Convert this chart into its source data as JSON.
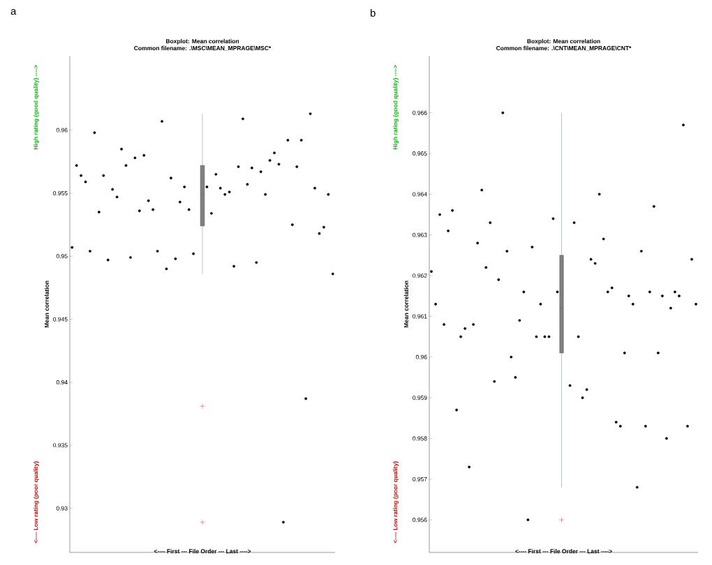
{
  "chart_data": [
    {
      "type": "scatter",
      "title": "Boxplot: Mean correlation",
      "subtitle": "Common filename: .\\MSC\\MEAN_MPRAGE\\MSC*",
      "xlabel": "<---- First --- File Order --- Last ---->",
      "ylabel": "Mean correlation",
      "annotations": [
        "a",
        "High rating (good quality) ---->",
        "<---- Low rating (poor quality)"
      ],
      "categories": [
        null,
        null,
        null,
        null,
        null,
        null,
        null,
        null,
        null,
        null,
        null,
        null,
        null,
        null,
        null,
        null,
        null,
        null,
        null,
        null,
        null,
        null,
        null,
        null,
        null,
        null,
        null,
        null,
        null,
        null,
        null,
        null,
        null,
        null,
        null,
        null,
        null,
        null,
        null,
        null,
        null,
        null,
        null,
        null,
        null,
        null,
        null,
        null,
        null,
        null,
        null,
        null,
        null,
        null,
        null,
        null,
        null,
        null,
        null
      ],
      "ylim": [
        0.9265,
        0.9659
      ],
      "yticks": [
        0.93,
        0.935,
        0.94,
        0.945,
        0.95,
        0.955,
        0.96
      ],
      "tick_labels": "y",
      "grid": false,
      "series": [
        {
          "color": "#000000",
          "values": [
            0.9507,
            0.9572,
            0.9564,
            0.9559,
            0.9504,
            0.9598,
            0.9535,
            0.9564,
            0.9497,
            0.9553,
            0.9547,
            0.9585,
            0.9572,
            0.9499,
            0.9578,
            0.9536,
            0.958,
            0.9544,
            0.9537,
            0.9504,
            0.9607,
            0.949,
            0.9562,
            0.9498,
            0.9543,
            0.9555,
            0.9537,
            0.9502,
            null,
            null,
            0.9555,
            0.9534,
            0.9565,
            0.9554,
            0.9549,
            0.9551,
            0.9492,
            0.9571,
            0.9609,
            0.9557,
            0.957,
            0.9495,
            0.9567,
            0.9549,
            0.9576,
            0.9582,
            0.9573,
            0.9289,
            0.9592,
            0.9525,
            0.9571,
            0.9592,
            0.9387,
            0.9613,
            0.9554,
            0.9518,
            0.9523,
            0.9549,
            0.9486
          ]
        },
        {
          "type": "box",
          "color": "#808080",
          "boxes": [
            null,
            null,
            null,
            null,
            null,
            null,
            null,
            null,
            null,
            null,
            null,
            null,
            null,
            null,
            null,
            null,
            null,
            null,
            null,
            null,
            null,
            null,
            null,
            null,
            null,
            null,
            null,
            null,
            null,
            {
              "low": 0.9486,
              "q1": 0.9524,
              "median": 0.9549,
              "q3": 0.9572,
              "high": 0.9613,
              "outliers": [
                0.9381,
                0.9289
              ]
            },
            null,
            null,
            null,
            null,
            null,
            null,
            null,
            null,
            null,
            null,
            null,
            null,
            null,
            null,
            null,
            null,
            null,
            null,
            null,
            null,
            null,
            null,
            null,
            null,
            null,
            null,
            null,
            null,
            null
          ]
        }
      ]
    },
    {
      "type": "scatter",
      "title": "Boxplot: Mean correlation",
      "subtitle": "Common filename: .\\CNT\\MEAN_MPRAGE\\CNT*",
      "xlabel": "<---- First --- File Order --- Last ---->",
      "ylabel": "Mean correlation",
      "annotations": [
        "b",
        "High rating (good quality) ---->",
        "<---- Low rating (poor quality)"
      ],
      "categories": [
        null,
        null,
        null,
        null,
        null,
        null,
        null,
        null,
        null,
        null,
        null,
        null,
        null,
        null,
        null,
        null,
        null,
        null,
        null,
        null,
        null,
        null,
        null,
        null,
        null,
        null,
        null,
        null,
        null,
        null,
        null,
        null,
        null,
        null,
        null,
        null,
        null,
        null,
        null,
        null,
        null,
        null,
        null,
        null,
        null,
        null,
        null,
        null,
        null,
        null,
        null,
        null,
        null,
        null,
        null,
        null,
        null,
        null,
        null,
        null,
        null,
        null,
        null,
        null
      ],
      "ylim": [
        0.9552,
        0.9674
      ],
      "yticks": [
        0.956,
        0.957,
        0.958,
        0.959,
        0.96,
        0.961,
        0.962,
        0.963,
        0.964,
        0.965,
        0.966
      ],
      "tick_labels": "y",
      "grid": false,
      "series": [
        {
          "color": "#000000",
          "values": [
            0.9621,
            0.9613,
            0.9635,
            0.9608,
            0.9631,
            0.9636,
            0.9587,
            0.9605,
            0.9607,
            0.9573,
            0.9608,
            0.9628,
            0.9641,
            0.9622,
            0.9633,
            0.9594,
            0.9619,
            0.966,
            0.9626,
            0.96,
            0.9595,
            0.9609,
            0.9616,
            0.956,
            0.9627,
            0.9605,
            0.9613,
            0.9605,
            0.9605,
            0.9634,
            0.9616,
            null,
            null,
            0.9593,
            0.9633,
            0.9605,
            0.959,
            0.9592,
            0.9624,
            0.9623,
            0.964,
            0.9629,
            0.9616,
            0.9617,
            0.9584,
            0.9583,
            0.9601,
            0.9615,
            0.9613,
            0.9568,
            0.9626,
            0.9583,
            0.9616,
            0.9637,
            0.9601,
            0.9615,
            0.958,
            0.9612,
            0.9616,
            0.9615,
            0.9657,
            0.9583,
            0.9624,
            0.9613
          ]
        },
        {
          "type": "box",
          "color": "#808080",
          "boxes": [
            null,
            null,
            null,
            null,
            null,
            null,
            null,
            null,
            null,
            null,
            null,
            null,
            null,
            null,
            null,
            null,
            null,
            null,
            null,
            null,
            null,
            null,
            null,
            null,
            null,
            null,
            null,
            null,
            null,
            null,
            null,
            {
              "low": 0.9568,
              "q1": 0.9601,
              "median": 0.9612,
              "q3": 0.9625,
              "high": 0.966,
              "outliers": [
                0.956
              ]
            },
            null,
            null,
            null,
            null,
            null,
            null,
            null,
            null,
            null,
            null,
            null,
            null,
            null,
            null,
            null,
            null,
            null,
            null,
            null,
            null,
            null,
            null,
            null,
            null,
            null,
            null,
            null,
            null,
            null,
            null,
            null,
            null
          ]
        }
      ]
    }
  ]
}
